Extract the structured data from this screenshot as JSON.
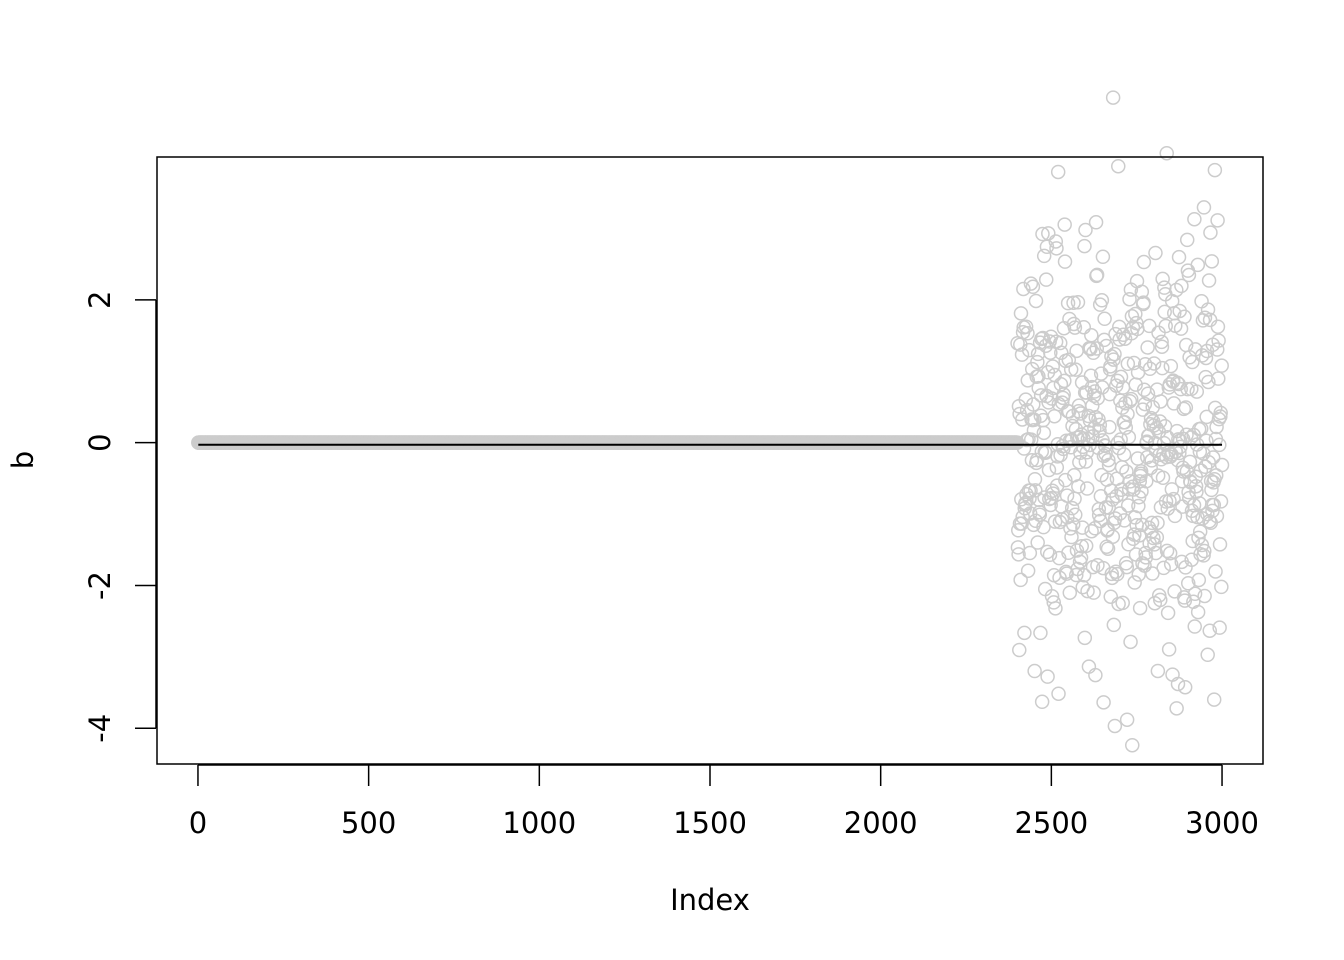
{
  "chart_data": {
    "type": "scatter",
    "xlabel": "Index",
    "ylabel": "b",
    "xlim": [
      -120,
      3120
    ],
    "ylim": [
      -4.5,
      4.0
    ],
    "x_ticks": [
      0,
      500,
      1000,
      1500,
      2000,
      2500,
      3000
    ],
    "y_ticks": [
      -4,
      -2,
      0,
      2
    ],
    "x_tick_labels": [
      "0",
      "500",
      "1000",
      "1500",
      "2000",
      "2500",
      "3000"
    ],
    "y_tick_labels": [
      "-4",
      "-2",
      "0",
      "2"
    ],
    "grid": false,
    "legend": "none",
    "n_points": 3000,
    "zero_segment": {
      "x_from": 1,
      "x_to": 2400,
      "y": 0
    },
    "noise_segment": {
      "x_from": 2401,
      "x_to": 3000,
      "mean": 0,
      "sd": 1.5
    },
    "reference_line": {
      "x_from": 1,
      "x_to": 3000,
      "y": -0.03
    },
    "point_color": "#cccccc",
    "line_color": "#000000"
  }
}
